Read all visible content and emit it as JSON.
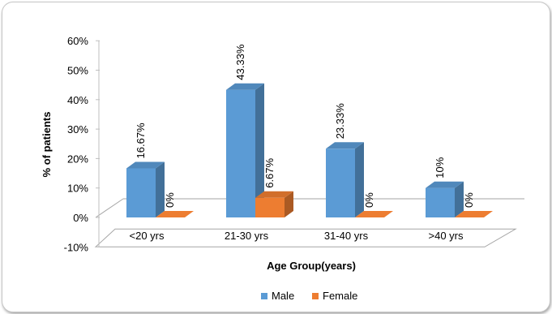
{
  "chart_data": {
    "type": "bar",
    "style": "3d-clustered-column",
    "title": "",
    "xlabel": "Age Group(years)",
    "ylabel": "% of patients",
    "categories": [
      "<20 yrs",
      "21-30 yrs",
      "31-40 yrs",
      ">40 yrs"
    ],
    "series": [
      {
        "name": "Male",
        "color": "#5B9BD5",
        "values": [
          16.67,
          43.33,
          23.33,
          10
        ],
        "labels": [
          "16.67%",
          "43.33%",
          "23.33%",
          "10%"
        ]
      },
      {
        "name": "Female",
        "color": "#ED7D31",
        "values": [
          0,
          6.67,
          0,
          0
        ],
        "labels": [
          "0%",
          "6.67%",
          "0%",
          "0%"
        ]
      }
    ],
    "y_ticks": [
      "-10%",
      "0%",
      "10%",
      "20%",
      "30%",
      "40%",
      "50%",
      "60%"
    ],
    "ylim": [
      -10,
      60
    ],
    "grid": false,
    "legend": "bottom"
  }
}
